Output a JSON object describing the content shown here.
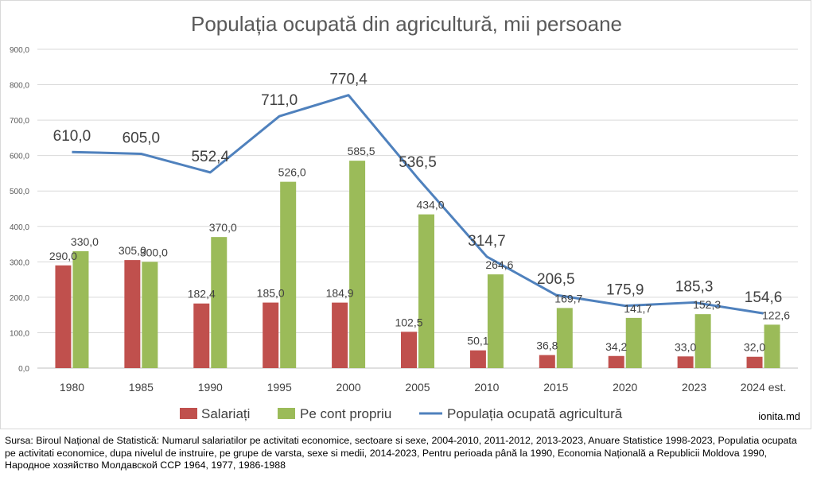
{
  "chart_data": {
    "type": "bar",
    "title": "Populația ocupată din agricultură, mii persoane",
    "categories": [
      "1980",
      "1985",
      "1990",
      "1995",
      "2000",
      "2005",
      "2010",
      "2015",
      "2020",
      "2023",
      "2024 est."
    ],
    "series": [
      {
        "name": "Salariați",
        "type": "bar",
        "color": "#c0504d",
        "values": [
          290.0,
          305.0,
          182.4,
          185.0,
          184.9,
          102.5,
          50.1,
          36.8,
          34.2,
          33.0,
          32.0
        ],
        "labels": [
          "290,0",
          "305,0",
          "182,4",
          "185,0",
          "184,9",
          "102,5",
          "50,1",
          "36,8",
          "34,2",
          "33,0",
          "32,0"
        ]
      },
      {
        "name": "Pe cont propriu",
        "type": "bar",
        "color": "#9bbb59",
        "values": [
          330.0,
          300.0,
          370.0,
          526.0,
          585.5,
          434.0,
          264.6,
          169.7,
          141.7,
          152.3,
          122.6
        ],
        "labels": [
          "330,0",
          "300,0",
          "370,0",
          "526,0",
          "585,5",
          "434,0",
          "264,6",
          "169,7",
          "141,7",
          "152,3",
          "122,6"
        ]
      },
      {
        "name": "Populația ocupată agricultură",
        "type": "line",
        "color": "#4f81bd",
        "values": [
          610.0,
          605.0,
          552.4,
          711.0,
          770.4,
          536.5,
          314.7,
          206.5,
          175.9,
          185.3,
          154.6
        ],
        "labels": [
          "610,0",
          "605,0",
          "552,4",
          "711,0",
          "770,4",
          "536,5",
          "314,7",
          "206,5",
          "175,9",
          "185,3",
          "154,6"
        ]
      }
    ],
    "y_ticks": [
      "0,0",
      "100,0",
      "200,0",
      "300,0",
      "400,0",
      "500,0",
      "600,0",
      "700,0",
      "800,0",
      "900,0"
    ],
    "ylim": [
      0,
      900
    ],
    "grid": true,
    "legend": "bottom"
  },
  "watermark": "ionita.md",
  "source": "Sursa: Biroul Național de Statistică: Numarul salariatilor pe activitati economice, sectoare si sexe, 2004-2010, 2011-2012, 2013-2023, Anuare Statistice 1998-2023, Populatia ocupata pe activitati economice, dupa nivelul de instruire, pe grupe de varsta, sexe si medii, 2014-2023, Pentru perioada până la 1990, Economia Națională a Republicii Moldova 1990, Народное хозяйство Молдавской ССР 1964, 1977, 1986-1988"
}
